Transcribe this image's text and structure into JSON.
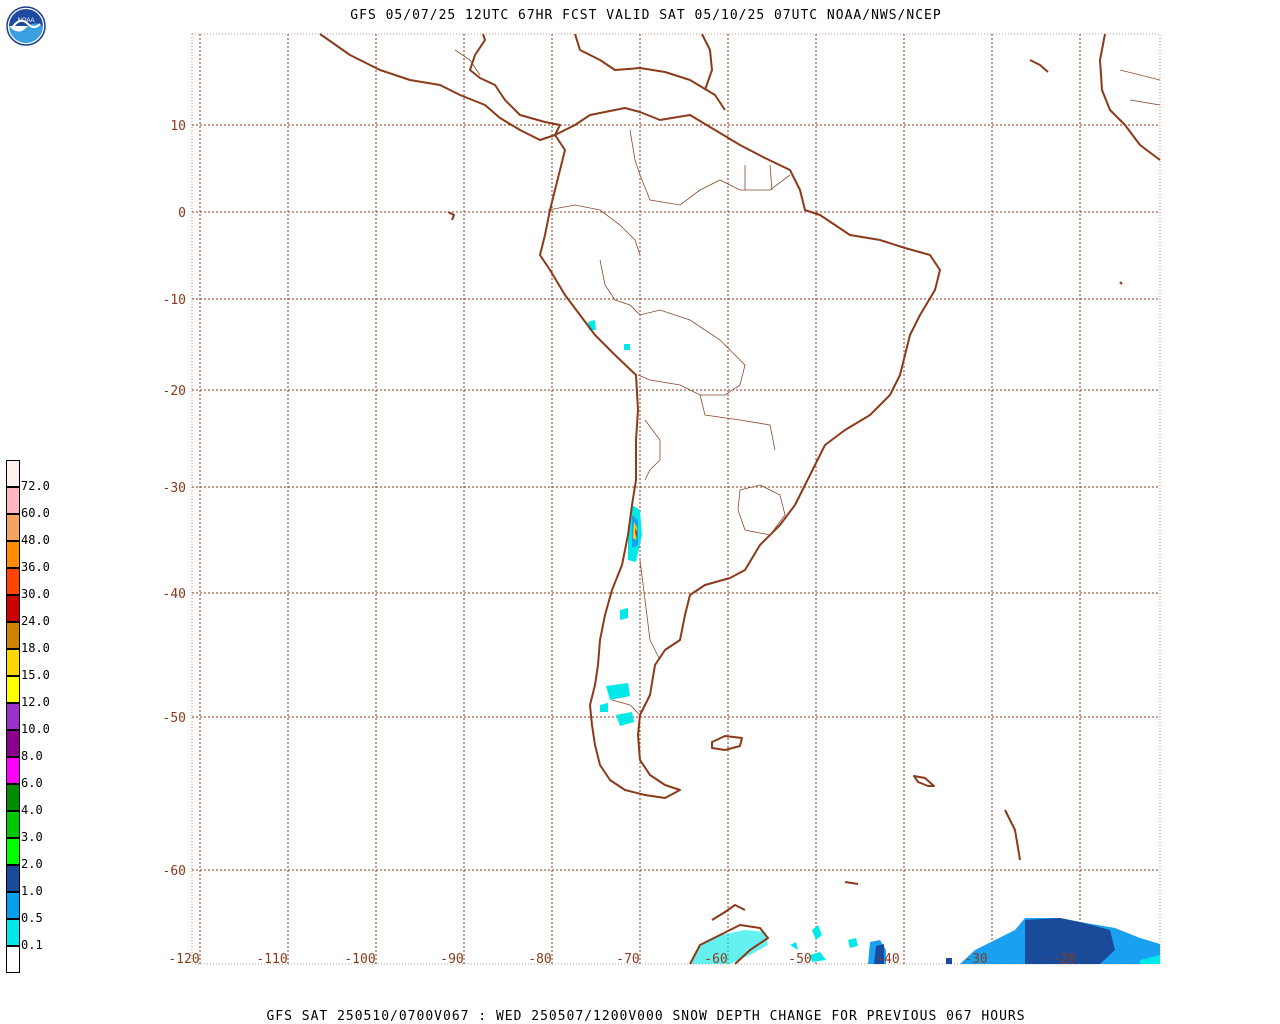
{
  "header": {
    "title": "GFS 05/07/25 12UTC 67HR FCST VALID SAT 05/10/25 07UTC NOAA/NWS/NCEP",
    "logo_text": "NOAA"
  },
  "footer": {
    "text": "GFS SAT 250510/0700V067 : WED 250507/1200V000 SNOW DEPTH CHANGE FOR PREVIOUS 067 HOURS"
  },
  "map": {
    "lat_labels": [
      "10",
      "0",
      "-10",
      "-20",
      "-30",
      "-40",
      "-50",
      "-60"
    ],
    "lon_labels": [
      "-120",
      "-110",
      "-100",
      "-90",
      "-80",
      "-70",
      "-60",
      "-50",
      "-40",
      "-30",
      "-20"
    ],
    "colors": {
      "coast": "#8b3a1a",
      "border": "#8b4a2a",
      "grid": "#8b3a1a"
    }
  },
  "legend": {
    "levels": [
      "0.1",
      "0.5",
      "1.0",
      "2.0",
      "3.0",
      "4.0",
      "6.0",
      "8.0",
      "10.0",
      "12.0",
      "15.0",
      "18.0",
      "24.0",
      "30.0",
      "36.0",
      "48.0",
      "60.0",
      "72.0"
    ],
    "colors": [
      "#ffffff",
      "#00e8e8",
      "#00a0f0",
      "#1a4a9a",
      "#00ff00",
      "#00c800",
      "#008c00",
      "#ff00ff",
      "#8b008b",
      "#9a32cd",
      "#ffff00",
      "#ffd700",
      "#cd8500",
      "#cd0000",
      "#ff4500",
      "#ff8c00",
      "#f4a460",
      "#ffb6c1",
      "#fff0f0"
    ]
  }
}
